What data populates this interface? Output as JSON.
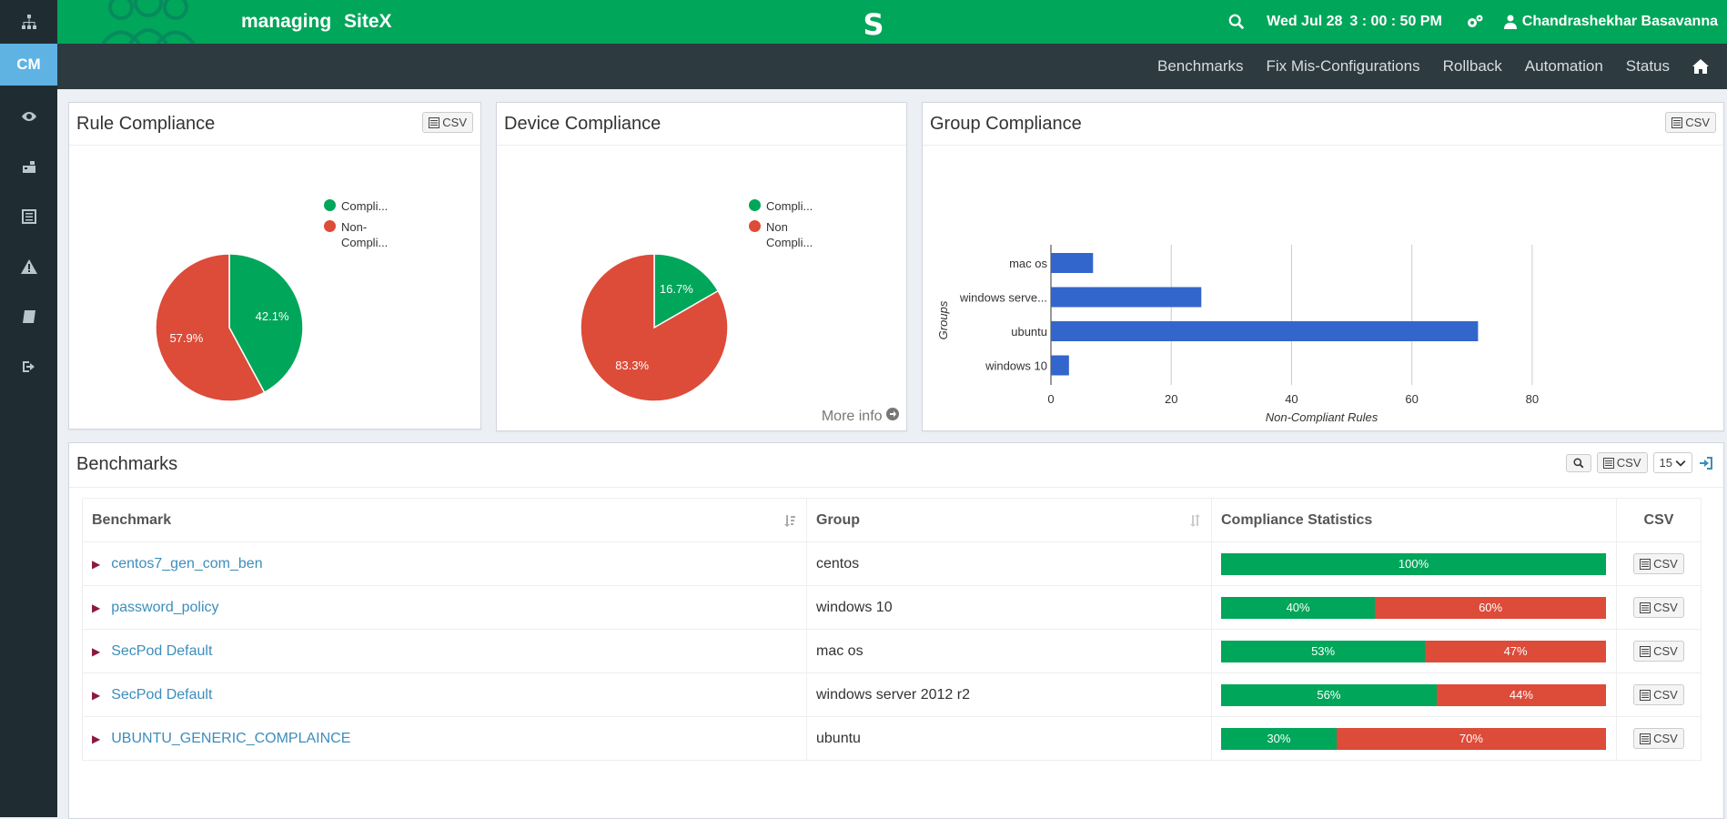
{
  "header": {
    "brand_managing": "managing",
    "brand_site": "SiteX",
    "center_logo": "S",
    "date": "Wed Jul 28",
    "time": "3 : 00 : 50 PM",
    "user": "Chandrashekhar Basavanna",
    "brand_color": "#00a65a"
  },
  "sidebar": {
    "items": [
      {
        "icon": "sitemap-icon"
      },
      {
        "label": "CM",
        "icon": "cm-icon"
      },
      {
        "icon": "eye-icon"
      },
      {
        "icon": "dashboard-icon"
      },
      {
        "icon": "list-icon"
      },
      {
        "icon": "warning-icon"
      },
      {
        "icon": "book-icon"
      },
      {
        "icon": "sign-out-icon"
      }
    ]
  },
  "nav": {
    "links": [
      "Benchmarks",
      "Fix Mis-Configurations",
      "Rollback",
      "Automation",
      "Status"
    ]
  },
  "panels": {
    "rule": {
      "title": "Rule Compliance",
      "csv": "CSV"
    },
    "device": {
      "title": "Device Compliance",
      "more_info": "More info"
    },
    "group": {
      "title": "Group Compliance",
      "csv": "CSV"
    }
  },
  "chart_data": [
    {
      "type": "pie",
      "title": "Rule Compliance",
      "legend": [
        "Compli...",
        "Non-Compli..."
      ],
      "values": [
        42.1,
        57.9
      ],
      "labels": [
        "42.1%",
        "57.9%"
      ],
      "colors": [
        "#00a65a",
        "#dd4b39"
      ]
    },
    {
      "type": "pie",
      "title": "Device Compliance",
      "legend": [
        "Compli...",
        "Non Compli..."
      ],
      "values": [
        16.7,
        83.3
      ],
      "labels": [
        "16.7%",
        "83.3%"
      ],
      "colors": [
        "#00a65a",
        "#dd4b39"
      ]
    },
    {
      "type": "bar",
      "orientation": "horizontal",
      "title": "Group Compliance",
      "categories": [
        "mac os",
        "windows serve...",
        "ubuntu",
        "windows 10"
      ],
      "values": [
        7,
        25,
        71,
        3
      ],
      "xlabel": "Non-Compliant Rules",
      "ylabel": "Groups",
      "xticks": [
        0,
        20,
        40,
        60,
        80
      ],
      "xlim": [
        0,
        90
      ],
      "grid": true,
      "color": "#3366cc"
    }
  ],
  "benchmarks": {
    "title": "Benchmarks",
    "csv": "CSV",
    "page_size": "15",
    "columns": [
      "Benchmark",
      "Group",
      "Compliance Statistics",
      "CSV"
    ],
    "rows": [
      {
        "name": "centos7_gen_com_ben",
        "group": "centos",
        "compliant": 100,
        "non_compliant": 0
      },
      {
        "name": "password_policy",
        "group": "windows 10",
        "compliant": 40,
        "non_compliant": 60
      },
      {
        "name": "SecPod Default",
        "group": "mac os",
        "compliant": 53,
        "non_compliant": 47
      },
      {
        "name": "SecPod Default",
        "group": "windows server 2012 r2",
        "compliant": 56,
        "non_compliant": 44
      },
      {
        "name": "UBUNTU_GENERIC_COMPLAINCE",
        "group": "ubuntu",
        "compliant": 30,
        "non_compliant": 70
      }
    ]
  }
}
